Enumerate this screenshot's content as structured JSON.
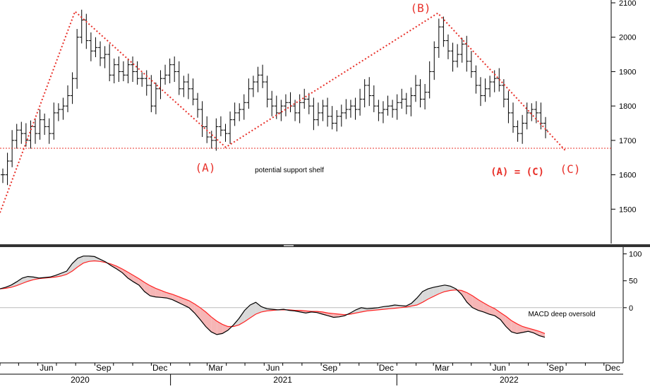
{
  "colors": {
    "price_bars": "#000000",
    "wave_lines": "#e8312a",
    "annotation_red": "#e8312a",
    "macd_line": "#000000",
    "signal_line": "#ff2222",
    "fill_above": "#d9d9d9",
    "fill_below": "#f6b6b6",
    "zero_line": "#bbbbbb",
    "axis": "#000000"
  },
  "chart_data": [
    {
      "type": "ohlc",
      "yticks": [
        "1500",
        "1600",
        "1700",
        "1800",
        "1900",
        "2000",
        "2100"
      ],
      "ylim": [
        1400,
        2100
      ],
      "x_month_labels": [
        "Jun",
        "Sep",
        "Dec",
        "Mar",
        "Jun",
        "Sep",
        "Dec",
        "Mar",
        "Jun",
        "Sep",
        "Dec"
      ],
      "x_year_labels": [
        "2020",
        "2021",
        "2022"
      ],
      "wave_points": [
        {
          "date": "2020-04-01",
          "value": 1490
        },
        {
          "date": "2020-07-31",
          "value": 2075
        },
        {
          "date": "2021-03-31",
          "value": 1680
        },
        {
          "date": "2022-03-08",
          "value": 2070
        },
        {
          "date": "2022-09-30",
          "value": 1670
        }
      ],
      "support_level": 1677,
      "annotations": [
        {
          "label": "(A)",
          "date": "2021-03-31",
          "value": 1625
        },
        {
          "label": "(B)",
          "date": "2022-03-08",
          "value": 2085
        },
        {
          "label": "(C)",
          "date": "2022-09-30",
          "value": 1620
        },
        {
          "label": "(A) = (C)",
          "date": "2022-07-31",
          "value": 1605
        },
        {
          "label": "potential support shelf",
          "date": "2021-07-15",
          "value": 1615
        }
      ],
      "weekly_close": [
        1600,
        1640,
        1700,
        1730,
        1720,
        1700,
        1740,
        1720,
        1760,
        1740,
        1720,
        1780,
        1790,
        1800,
        1830,
        1880,
        2000,
        2050,
        1990,
        1960,
        1970,
        1940,
        1950,
        1890,
        1920,
        1900,
        1890,
        1920,
        1900,
        1880,
        1880,
        1860,
        1800,
        1850,
        1880,
        1890,
        1920,
        1900,
        1850,
        1870,
        1850,
        1820,
        1790,
        1740,
        1710,
        1700,
        1740,
        1730,
        1720,
        1760,
        1780,
        1790,
        1810,
        1850,
        1870,
        1890,
        1870,
        1820,
        1800,
        1780,
        1800,
        1810,
        1800,
        1780,
        1810,
        1820,
        1800,
        1760,
        1780,
        1800,
        1770,
        1750,
        1770,
        1780,
        1790,
        1800,
        1790,
        1820,
        1860,
        1830,
        1800,
        1780,
        1790,
        1800,
        1790,
        1810,
        1820,
        1800,
        1830,
        1860,
        1820,
        1840,
        1900,
        1970,
        2030,
        1990,
        1960,
        1930,
        1950,
        1980,
        1930,
        1900,
        1860,
        1830,
        1850,
        1870,
        1880,
        1860,
        1820,
        1780,
        1740,
        1720,
        1750,
        1780,
        1790,
        1780,
        1750,
        1730
      ]
    },
    {
      "type": "line",
      "yticks": [
        "100",
        "50",
        "0"
      ],
      "ylim": [
        -100,
        110
      ],
      "series": [
        {
          "name": "",
          "values": [
            35,
            38,
            42,
            48,
            55,
            58,
            57,
            55,
            56,
            57,
            60,
            64,
            68,
            82,
            92,
            96,
            96,
            95,
            90,
            85,
            78,
            72,
            65,
            55,
            48,
            42,
            30,
            22,
            20,
            19,
            18,
            15,
            10,
            5,
            0,
            -10,
            -22,
            -35,
            -45,
            -50,
            -48,
            -42,
            -32,
            -20,
            -5,
            5,
            10,
            2,
            -2,
            -3,
            -4,
            -3,
            -5,
            -6,
            -8,
            -10,
            -8,
            -9,
            -12,
            -15,
            -18,
            -17,
            -15,
            -10,
            -4,
            0,
            -2,
            -1,
            0,
            2,
            3,
            5,
            4,
            3,
            8,
            18,
            30,
            35,
            38,
            40,
            42,
            40,
            35,
            25,
            10,
            0,
            -5,
            -8,
            -12,
            -15,
            -22,
            -35,
            -45,
            -48,
            -46,
            -44,
            -47,
            -52,
            -55
          ]
        },
        {
          "name": "",
          "values": [
            35,
            36,
            38,
            41,
            45,
            49,
            52,
            54,
            55,
            56,
            57,
            59,
            62,
            68,
            76,
            83,
            86,
            87,
            86,
            84,
            81,
            77,
            72,
            66,
            60,
            54,
            47,
            41,
            36,
            32,
            28,
            25,
            21,
            17,
            13,
            7,
            0,
            -8,
            -17,
            -25,
            -31,
            -35,
            -35,
            -32,
            -26,
            -19,
            -12,
            -8,
            -6,
            -5,
            -4,
            -4,
            -4,
            -5,
            -5,
            -6,
            -7,
            -7,
            -8,
            -10,
            -11,
            -12,
            -13,
            -12,
            -10,
            -8,
            -6,
            -5,
            -4,
            -3,
            -2,
            -1,
            0,
            1,
            3,
            5,
            10,
            16,
            21,
            26,
            30,
            32,
            33,
            32,
            28,
            22,
            15,
            9,
            3,
            -2,
            -9,
            -16,
            -24,
            -30,
            -35,
            -38,
            -41,
            -44,
            -48
          ]
        }
      ],
      "annotations": [
        {
          "label": "MACD deep oversold"
        }
      ]
    }
  ],
  "labels": {
    "wave_a": "(A)",
    "wave_b": "(B)",
    "wave_c": "(C)",
    "ratio": "(A) = (C)",
    "support": "potential support shelf",
    "macd_note": "MACD deep oversold"
  }
}
